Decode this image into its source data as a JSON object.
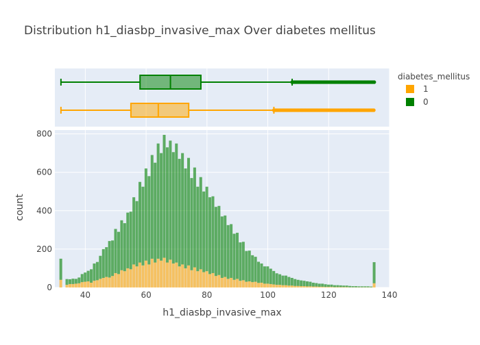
{
  "chart_data": {
    "type": "histogram",
    "title": "Distribution h1_diasbp_invasive_max Over diabetes mellitus",
    "xlabel": "h1_diasbp_invasive_max",
    "ylabel": "count",
    "xlim": [
      30,
      140
    ],
    "ylim": [
      0,
      820
    ],
    "barmode": "stacked",
    "x_ticks": [
      40,
      60,
      80,
      100,
      120,
      140
    ],
    "y_ticks": [
      0,
      200,
      400,
      600,
      800
    ],
    "legend": {
      "title": "diabetes_mellitus",
      "placement": "right",
      "entries": [
        {
          "name": "1",
          "color": "#FFA500"
        },
        {
          "name": "0",
          "color": "#008000"
        }
      ]
    },
    "colors": {
      "1": "#FFA500",
      "0": "#008000",
      "plot_bg": "#E5ECF6",
      "grid": "#ffffff"
    },
    "histogram": {
      "bin_width": 1,
      "bins_x": [
        32,
        34,
        35,
        36,
        37,
        38,
        39,
        40,
        41,
        42,
        43,
        44,
        45,
        46,
        47,
        48,
        49,
        50,
        51,
        52,
        53,
        54,
        55,
        56,
        57,
        58,
        59,
        60,
        61,
        62,
        63,
        64,
        65,
        66,
        67,
        68,
        69,
        70,
        71,
        72,
        73,
        74,
        75,
        76,
        77,
        78,
        79,
        80,
        81,
        82,
        83,
        84,
        85,
        86,
        87,
        88,
        89,
        90,
        91,
        92,
        93,
        94,
        95,
        96,
        97,
        98,
        99,
        100,
        101,
        102,
        103,
        104,
        105,
        106,
        107,
        108,
        109,
        110,
        111,
        112,
        113,
        114,
        115,
        116,
        117,
        118,
        119,
        120,
        121,
        122,
        123,
        124,
        125,
        126,
        127,
        128,
        129,
        130,
        131,
        132,
        133,
        134,
        135
      ],
      "series": [
        {
          "name": "1",
          "values": [
            40,
            14,
            18,
            18,
            20,
            22,
            28,
            30,
            32,
            25,
            35,
            38,
            45,
            50,
            55,
            52,
            60,
            75,
            70,
            90,
            85,
            100,
            95,
            120,
            110,
            130,
            115,
            140,
            120,
            150,
            130,
            150,
            140,
            155,
            130,
            145,
            125,
            130,
            110,
            120,
            100,
            115,
            90,
            105,
            85,
            95,
            80,
            85,
            70,
            75,
            60,
            65,
            50,
            55,
            45,
            50,
            40,
            45,
            35,
            38,
            30,
            32,
            28,
            30,
            24,
            25,
            20,
            20,
            18,
            16,
            14,
            14,
            12,
            12,
            10,
            10,
            8,
            8,
            7,
            7,
            6,
            6,
            5,
            5,
            4,
            4,
            3,
            3,
            3,
            2,
            2,
            2,
            2,
            2,
            1,
            1,
            1,
            1,
            1,
            1,
            1,
            1,
            22
          ]
        },
        {
          "name": "0",
          "values": [
            110,
            30,
            25,
            28,
            25,
            30,
            42,
            48,
            55,
            70,
            90,
            95,
            120,
            150,
            155,
            190,
            185,
            230,
            220,
            260,
            250,
            290,
            300,
            350,
            340,
            420,
            410,
            480,
            460,
            540,
            520,
            600,
            560,
            640,
            600,
            620,
            580,
            620,
            560,
            580,
            520,
            560,
            480,
            520,
            440,
            480,
            420,
            440,
            400,
            400,
            360,
            360,
            320,
            320,
            280,
            280,
            240,
            240,
            200,
            200,
            160,
            160,
            140,
            130,
            110,
            100,
            90,
            90,
            80,
            70,
            60,
            55,
            50,
            50,
            45,
            40,
            36,
            32,
            30,
            28,
            26,
            24,
            20,
            18,
            16,
            16,
            14,
            12,
            12,
            10,
            10,
            9,
            8,
            8,
            7,
            6,
            6,
            5,
            5,
            5,
            5,
            4,
            110
          ]
        }
      ]
    },
    "boxplots": [
      {
        "name": "0",
        "min": 32,
        "q1": 58,
        "median": 68,
        "q3": 78,
        "upper_fence": 108,
        "outliers_range": [
          108,
          135
        ]
      },
      {
        "name": "1",
        "min": 32,
        "q1": 55,
        "median": 64,
        "q3": 74,
        "upper_fence": 102,
        "outliers_range": [
          102,
          135
        ]
      }
    ]
  }
}
